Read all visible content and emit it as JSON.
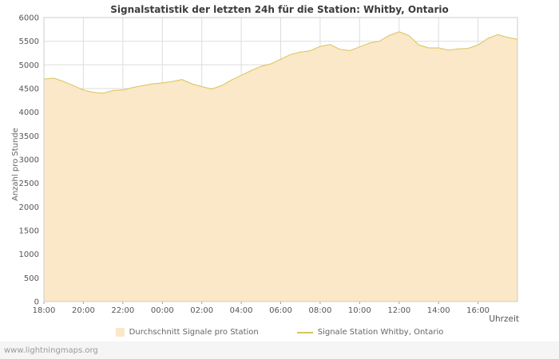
{
  "page": {
    "watermark": "www.lightningmaps.org"
  },
  "chart_data": {
    "type": "area",
    "title": "Signalstatistik der letzten 24h für die Station: Whitby, Ontario",
    "ylabel": "Anzahl pro Stunde",
    "xlabel": "Uhrzeit",
    "ylim": [
      0,
      6000
    ],
    "y_tick_step": 500,
    "x_hours_span": 24,
    "x_tick_interval_hours": 2,
    "x_ticks": [
      "18:00",
      "20:00",
      "22:00",
      "00:00",
      "02:00",
      "04:00",
      "06:00",
      "08:00",
      "10:00",
      "12:00",
      "14:00",
      "16:00"
    ],
    "grid": true,
    "legend_position": "bottom",
    "colors": {
      "grid": "#dddddd",
      "plot_border": "#cccccc",
      "tick_text": "#555555",
      "area_fill": "#fbe8c8",
      "station_line": "#d8c35a"
    },
    "series": [
      {
        "name": "Durchschnitt Signale pro Station",
        "type": "area",
        "color": "#fbe8c8",
        "x_step_hours": 0.5,
        "values": [
          4700,
          4720,
          4650,
          4560,
          4470,
          4420,
          4400,
          4460,
          4470,
          4520,
          4560,
          4600,
          4620,
          4650,
          4690,
          4600,
          4540,
          4490,
          4560,
          4680,
          4780,
          4880,
          4970,
          5020,
          5120,
          5220,
          5270,
          5300,
          5390,
          5430,
          5330,
          5300,
          5380,
          5460,
          5500,
          5620,
          5700,
          5620,
          5420,
          5360,
          5360,
          5310,
          5340,
          5350,
          5420,
          5560,
          5640,
          5580,
          5540
        ]
      },
      {
        "name": "Signale Station Whitby, Ontario",
        "type": "line",
        "color": "#d8c35a",
        "overlaps_area_top": true
      }
    ]
  }
}
